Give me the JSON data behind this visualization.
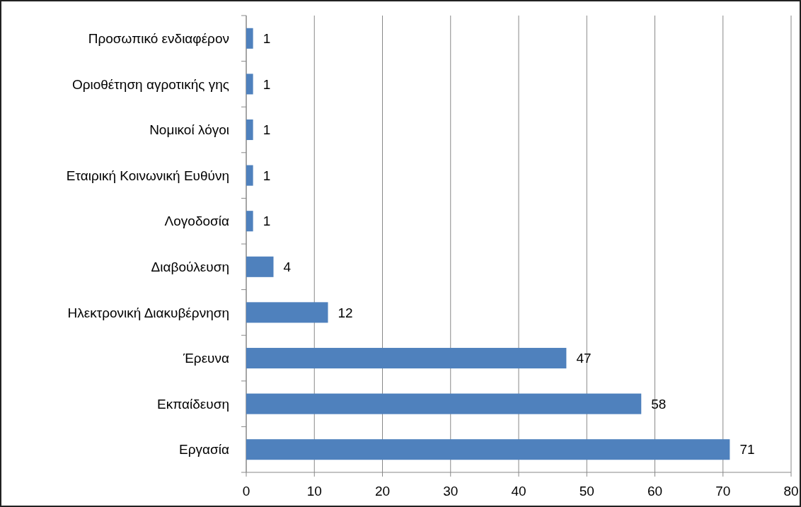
{
  "chart_data": {
    "type": "bar",
    "orientation": "horizontal",
    "categories": [
      "Προσωπικό ενδιαφέρον",
      "Οριοθέτηση αγροτικής γης",
      "Νομικοί λόγοι",
      "Εταιρική Κοινωνική Ευθύνη",
      "Λογοδοσία",
      "Διαβούλευση",
      "Ηλεκτρονική Διακυβέρνηση",
      "Έρευνα",
      "Εκπαίδευση",
      "Εργασία"
    ],
    "values": [
      1,
      1,
      1,
      1,
      1,
      4,
      12,
      47,
      58,
      71
    ],
    "color": "#4f81bd",
    "xlim": [
      0,
      80
    ],
    "xticks": [
      0,
      10,
      20,
      30,
      40,
      50,
      60,
      70,
      80
    ],
    "grid": "x",
    "data_labels": true
  }
}
